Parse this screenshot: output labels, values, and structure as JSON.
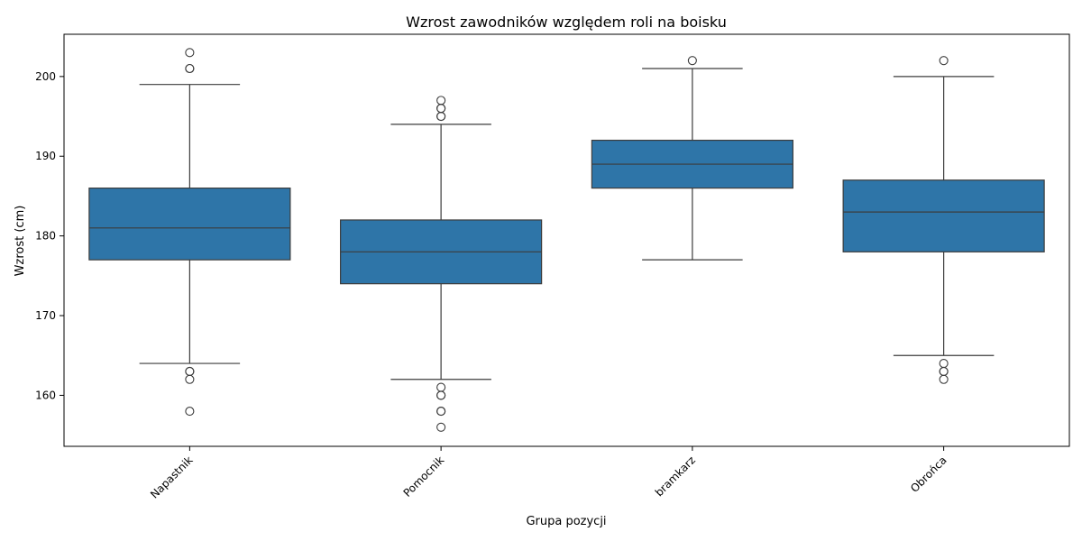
{
  "chart_data": {
    "type": "box",
    "title": "Wzrost zawodników  względem roli na boisku",
    "xlabel": "Grupa pozycji",
    "ylabel": "Wzrost (cm)",
    "ylim": [
      153.6,
      205.3
    ],
    "yticks": [
      160,
      170,
      180,
      190,
      200
    ],
    "categories": [
      "Napastnik",
      "Pomocnik",
      "bramkarz",
      "Obrońca"
    ],
    "box_color": "#2e75a8",
    "line_color": "#3c3c3c",
    "boxes": [
      {
        "category": "Napastnik",
        "whisker_low": 164,
        "q1": 177,
        "median": 181,
        "q3": 186,
        "whisker_high": 199,
        "outliers": [
          203,
          201,
          201,
          163,
          163,
          162,
          158
        ]
      },
      {
        "category": "Pomocnik",
        "whisker_low": 162,
        "q1": 174,
        "median": 178,
        "q3": 182,
        "whisker_high": 194,
        "outliers": [
          197,
          196,
          196,
          195,
          195,
          161,
          160,
          160,
          158,
          158,
          156
        ]
      },
      {
        "category": "bramkarz",
        "whisker_low": 177,
        "q1": 186,
        "median": 189,
        "q3": 192,
        "whisker_high": 201,
        "outliers": [
          202
        ]
      },
      {
        "category": "Obrońca",
        "whisker_low": 165,
        "q1": 178,
        "median": 183,
        "q3": 187,
        "whisker_high": 200,
        "outliers": [
          202,
          164,
          163,
          163,
          162
        ]
      }
    ],
    "grid": false,
    "legend": "none"
  }
}
